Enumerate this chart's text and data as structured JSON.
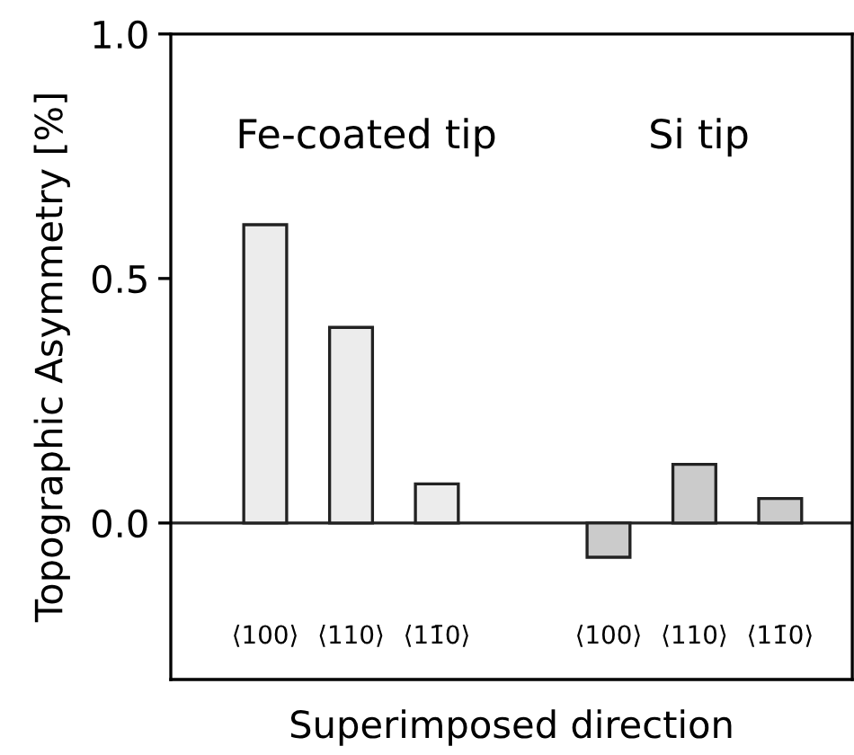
{
  "chart_data": {
    "type": "bar",
    "xlabel": "Superimposed direction",
    "ylabel": "Topographic Asymmetry [%]",
    "categories": [
      "⟨100⟩",
      "⟨110⟩",
      "⟨11̄0⟩",
      null,
      "⟨100⟩",
      "⟨110⟩",
      "⟨11̄0⟩"
    ],
    "values": [
      0.61,
      0.4,
      0.08,
      null,
      -0.07,
      0.12,
      0.05
    ],
    "colors": [
      "#ececec",
      "#ececec",
      "#ececec",
      null,
      "#cbcbcb",
      "#cbcbcb",
      "#cbcbcb"
    ],
    "ylim": [
      -0.32,
      1.0
    ],
    "yticks": [
      {
        "value": 0,
        "label": "0.0"
      },
      {
        "value": 0.5,
        "label": "0.5"
      },
      {
        "value": 1.0,
        "label": "1.0"
      }
    ],
    "ref_lines": [
      {
        "axis": "y",
        "value": 0
      }
    ],
    "annotations": [
      "Fe-coated tip",
      "Si tip"
    ]
  }
}
